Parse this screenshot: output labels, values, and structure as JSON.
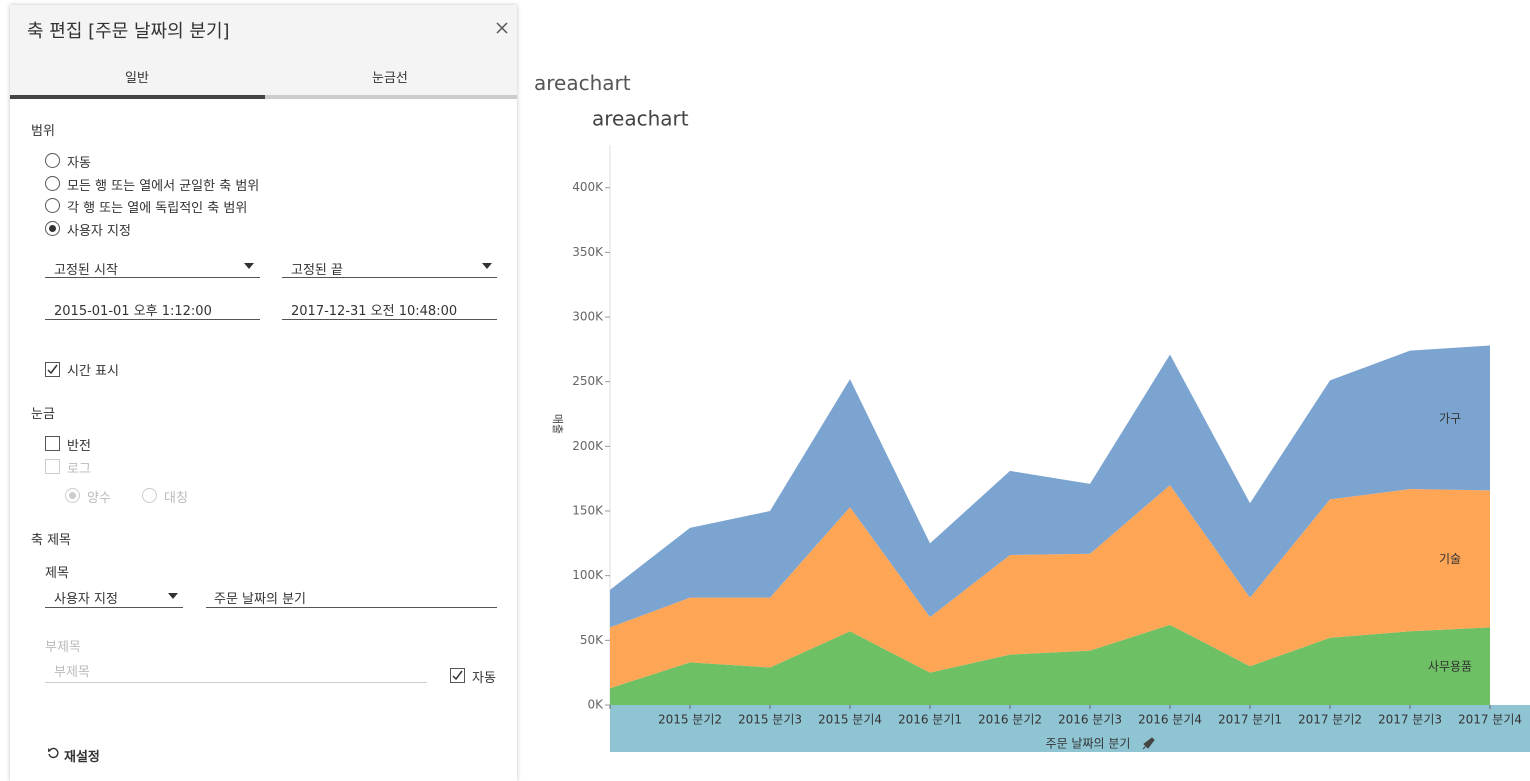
{
  "dialog": {
    "title": "축 편집 [주문 날짜의 분기]",
    "tabs": [
      "일반",
      "눈금선"
    ],
    "range": {
      "heading": "범위",
      "options": [
        "자동",
        "모든 행 또는 열에서 균일한 축 범위",
        "각 행 또는 열에 독립적인 축 범위",
        "사용자 지정"
      ],
      "start_mode": "고정된 시작",
      "end_mode": "고정된 끝",
      "start_value": "2015-01-01 오후 1:12:00",
      "end_value": "2017-12-31 오전 10:48:00",
      "show_time": "시간 표시"
    },
    "scale": {
      "heading": "눈금",
      "reversed": "반전",
      "log": "로그",
      "positive": "양수",
      "symmetric": "대칭"
    },
    "axis_title": {
      "heading": "축 제목",
      "title_label": "제목",
      "title_mode": "사용자 지정",
      "title_value": "주문 날짜의 분기",
      "subtitle_label": "부제목",
      "subtitle_placeholder": "부제목",
      "auto": "자동"
    },
    "reset": "재설정"
  },
  "sheet_name": "areachart",
  "chart_data": {
    "type": "stacked-area",
    "title": "areachart",
    "y_label": "매출",
    "x_label": "주문 날짜의 분기",
    "categories": [
      null,
      "2015 분기2",
      "2015 분기3",
      "2015 분기4",
      "2016 분기1",
      "2016 분기2",
      "2016 분기3",
      "2016 분기4",
      "2017 분기1",
      "2017 분기2",
      "2017 분기3",
      "2017 분기4"
    ],
    "series": [
      {
        "name": "사무용품",
        "color": "#6dc063",
        "values": [
          13,
          33,
          29,
          57,
          25,
          39,
          42,
          62,
          30,
          52,
          57,
          60
        ]
      },
      {
        "name": "기술",
        "color": "#ffa556",
        "values": [
          47,
          50,
          54,
          96,
          43,
          77,
          75,
          108,
          53,
          107,
          110,
          106
        ]
      },
      {
        "name": "가구",
        "color": "#7ba4d1",
        "values": [
          29,
          54,
          67,
          99,
          57,
          65,
          54,
          101,
          73,
          92,
          107,
          112
        ]
      }
    ],
    "ylim": [
      0,
      440
    ],
    "yticks": [
      {
        "value": 0,
        "label": "0K"
      },
      {
        "value": 50,
        "label": "50K"
      },
      {
        "value": 100,
        "label": "100K"
      },
      {
        "value": 150,
        "label": "150K"
      },
      {
        "value": 200,
        "label": "200K"
      },
      {
        "value": 250,
        "label": "250K"
      },
      {
        "value": 300,
        "label": "300K"
      },
      {
        "value": 350,
        "label": "350K"
      },
      {
        "value": 400,
        "label": "400K"
      }
    ]
  }
}
